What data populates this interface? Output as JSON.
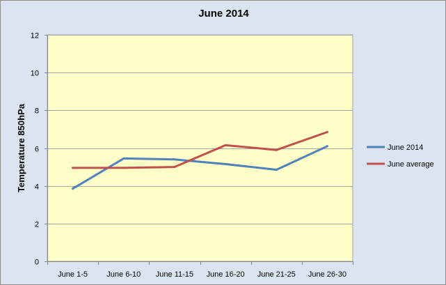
{
  "chart_data": {
    "type": "line",
    "title": "June 2014",
    "xlabel": "",
    "ylabel": "Temperature 850hPa",
    "categories": [
      "June 1-5",
      "June 6-10",
      "June 11-15",
      "June 16-20",
      "June 21-25",
      "June 26-30"
    ],
    "ylim": [
      0,
      12
    ],
    "yticks": [
      0,
      2,
      4,
      6,
      8,
      10,
      12
    ],
    "grid": true,
    "legend_position": "right",
    "plot_background": "#ffffc8",
    "chart_background": "#dbe5f1",
    "series": [
      {
        "name": "June 2014",
        "color": "#4f81bd",
        "values": [
          3.85,
          5.45,
          5.4,
          5.15,
          4.85,
          6.1
        ]
      },
      {
        "name": "June average",
        "color": "#c0504d",
        "values": [
          4.95,
          4.95,
          5.0,
          6.15,
          5.9,
          6.85
        ]
      }
    ]
  }
}
